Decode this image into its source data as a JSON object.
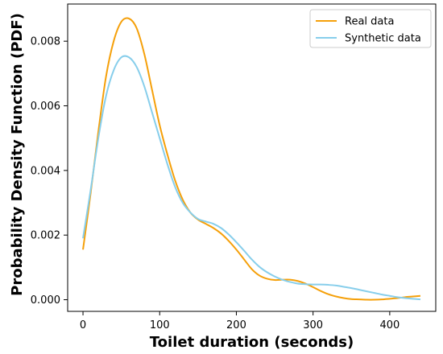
{
  "chart_data": {
    "type": "line",
    "title": "",
    "xlabel": "Toilet duration (seconds)",
    "ylabel": "Probability Density Function (PDF)",
    "xlim": [
      -20,
      460
    ],
    "ylim": [
      -0.00036,
      0.00915
    ],
    "x_ticks": [
      0,
      100,
      200,
      300,
      400
    ],
    "x_tick_labels": [
      "0",
      "100",
      "200",
      "300",
      "400"
    ],
    "y_ticks": [
      0.0,
      0.002,
      0.004,
      0.006,
      0.008
    ],
    "y_tick_labels": [
      "0.000",
      "0.002",
      "0.004",
      "0.006",
      "0.008"
    ],
    "grid": false,
    "legend_position": "top-right",
    "series": [
      {
        "name": "Real data",
        "color": "#f5a00a",
        "x": [
          0,
          10,
          20,
          30,
          40,
          50,
          60,
          70,
          80,
          90,
          100,
          110,
          120,
          130,
          140,
          150,
          160,
          170,
          180,
          190,
          200,
          210,
          220,
          230,
          240,
          250,
          260,
          270,
          280,
          290,
          300,
          310,
          320,
          330,
          340,
          350,
          360,
          370,
          380,
          390,
          400,
          410,
          420,
          430,
          440
        ],
        "y": [
          0.00155,
          0.0033,
          0.0052,
          0.0069,
          0.008,
          0.0086,
          0.0087,
          0.0084,
          0.0076,
          0.0065,
          0.0054,
          0.0045,
          0.0037,
          0.0031,
          0.0027,
          0.00248,
          0.00235,
          0.00222,
          0.00205,
          0.00182,
          0.00155,
          0.00125,
          0.00095,
          0.00075,
          0.00065,
          0.00061,
          0.00062,
          0.00062,
          0.00058,
          0.0005,
          0.00039,
          0.00027,
          0.00017,
          0.0001,
          5e-05,
          2e-05,
          1e-05,
          0.0,
          0.0,
          1e-05,
          3e-05,
          5e-05,
          8e-05,
          0.0001,
          0.00012
        ]
      },
      {
        "name": "Synthetic data",
        "color": "#87ceeb",
        "x": [
          0,
          10,
          20,
          30,
          40,
          50,
          60,
          70,
          80,
          90,
          100,
          110,
          120,
          130,
          140,
          150,
          160,
          170,
          180,
          190,
          200,
          210,
          220,
          230,
          240,
          250,
          260,
          270,
          280,
          290,
          300,
          310,
          320,
          330,
          340,
          350,
          360,
          370,
          380,
          390,
          400,
          410,
          420,
          430,
          440
        ],
        "y": [
          0.0019,
          0.0034,
          0.005,
          0.0063,
          0.0071,
          0.0075,
          0.0075,
          0.0072,
          0.0066,
          0.0058,
          0.005,
          0.0042,
          0.0035,
          0.003,
          0.0027,
          0.0025,
          0.00242,
          0.00235,
          0.00222,
          0.00202,
          0.00178,
          0.00152,
          0.00125,
          0.00102,
          0.00085,
          0.00072,
          0.00062,
          0.00055,
          0.0005,
          0.00048,
          0.00047,
          0.00047,
          0.00046,
          0.00044,
          0.0004,
          0.00036,
          0.00031,
          0.00026,
          0.00021,
          0.00016,
          0.00012,
          8e-05,
          5e-05,
          3e-05,
          1e-05
        ]
      }
    ]
  }
}
